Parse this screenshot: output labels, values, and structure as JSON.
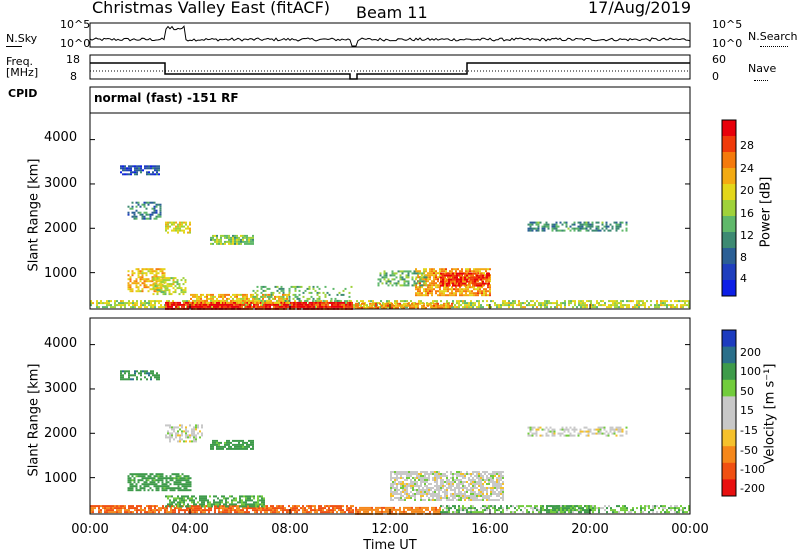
{
  "header": {
    "title": "Christmas Valley East (fitACF)",
    "beam": "Beam 11",
    "date": "17/Aug/2019"
  },
  "top_panels": {
    "nsky_label": "N.Sky",
    "nsky_ticks": [
      "10^5",
      "10^0"
    ],
    "nsearch_label": "N.Search",
    "nsearch_ticks": [
      "10^5",
      "10^0"
    ],
    "freq_label": "Freq.",
    "freq_unit": "[MHz]",
    "freq_ticks": [
      "18",
      "8"
    ],
    "nave_label": "Nave",
    "nave_ticks": [
      "60",
      "0"
    ],
    "cpid_label": "CPID",
    "cpid_value": "normal (fast) -151 RF"
  },
  "axes": {
    "ylabel": "Slant Range [km]",
    "xlabel": "Time UT",
    "yticks": [
      "4000",
      "3000",
      "2000",
      "1000"
    ],
    "xticks": [
      "00:00",
      "04:00",
      "08:00",
      "12:00",
      "16:00",
      "20:00",
      "00:00"
    ]
  },
  "colorbars": {
    "power": {
      "label": "Power [dB]",
      "ticks": [
        "28",
        "24",
        "20",
        "16",
        "12",
        "8",
        "4"
      ],
      "colors": [
        "#e8000b",
        "#f03a0a",
        "#f57a0c",
        "#f3aa12",
        "#e3d61a",
        "#9fd23a",
        "#5fb86a",
        "#3d8a72",
        "#2b5f95",
        "#1f3fbe",
        "#0d1fe6"
      ]
    },
    "velocity": {
      "label": "Velocity [m s⁻¹]",
      "ticks": [
        "200",
        "100",
        "50",
        "15",
        "-15",
        "-50",
        "-100",
        "-200"
      ],
      "colors": [
        "#1d3cbf",
        "#2a6f8a",
        "#3e9b4a",
        "#72cc3c",
        "#c8c8c8",
        "#c8c8c8",
        "#f5c12c",
        "#f5871a",
        "#f05012",
        "#e81010"
      ]
    }
  },
  "chart_data": [
    {
      "type": "heatmap",
      "ylabel": "Slant Range [km]",
      "xlabel": "Time UT",
      "xlim": [
        0,
        24
      ],
      "ylim": [
        180,
        4600
      ],
      "colorbar_label": "Power [dB]",
      "clim": [
        0,
        30
      ],
      "regions": [
        {
          "t": [
            0.0,
            24.0
          ],
          "r": [
            200,
            380
          ],
          "v": 16,
          "d": 0.6
        },
        {
          "t": [
            3.0,
            10.5
          ],
          "r": [
            200,
            340
          ],
          "v": 28,
          "d": 0.95
        },
        {
          "t": [
            4.0,
            8.0
          ],
          "r": [
            330,
            520
          ],
          "v": 20,
          "d": 0.7
        },
        {
          "t": [
            10.6,
            14.5
          ],
          "r": [
            200,
            320
          ],
          "v": 22,
          "d": 0.8
        },
        {
          "t": [
            13.0,
            16.0
          ],
          "r": [
            500,
            1100
          ],
          "v": 22,
          "d": 0.75
        },
        {
          "t": [
            14.0,
            16.0
          ],
          "r": [
            700,
            1000
          ],
          "v": 28,
          "d": 0.8
        },
        {
          "t": [
            11.5,
            13.5
          ],
          "r": [
            700,
            1050
          ],
          "v": 12,
          "d": 0.5
        },
        {
          "t": [
            1.5,
            3.0
          ],
          "r": [
            600,
            1100
          ],
          "v": 20,
          "d": 0.6
        },
        {
          "t": [
            2.5,
            3.8
          ],
          "r": [
            500,
            900
          ],
          "v": 16,
          "d": 0.6
        },
        {
          "t": [
            1.5,
            2.8
          ],
          "r": [
            2200,
            2600
          ],
          "v": 8,
          "d": 0.45
        },
        {
          "t": [
            1.2,
            2.8
          ],
          "r": [
            3200,
            3420
          ],
          "v": 4,
          "d": 0.7
        },
        {
          "t": [
            3.0,
            4.0
          ],
          "r": [
            1900,
            2150
          ],
          "v": 18,
          "d": 0.6
        },
        {
          "t": [
            4.8,
            6.5
          ],
          "r": [
            1650,
            1850
          ],
          "v": 14,
          "d": 0.8
        },
        {
          "t": [
            17.5,
            21.5
          ],
          "r": [
            1950,
            2150
          ],
          "v": 10,
          "d": 0.55
        },
        {
          "t": [
            6.5,
            10.5
          ],
          "r": [
            350,
            700
          ],
          "v": 12,
          "d": 0.3
        }
      ]
    },
    {
      "type": "heatmap",
      "ylabel": "Slant Range [km]",
      "xlabel": "Time UT",
      "xlim": [
        0,
        24
      ],
      "ylim": [
        180,
        4600
      ],
      "colorbar_label": "Velocity [m s⁻¹]",
      "clim": [
        -250,
        250
      ],
      "regions": [
        {
          "t": [
            0.0,
            10.5
          ],
          "r": [
            200,
            380
          ],
          "v": -80,
          "d": 0.8
        },
        {
          "t": [
            10.6,
            14.0
          ],
          "r": [
            200,
            340
          ],
          "v": -60,
          "d": 0.8
        },
        {
          "t": [
            14.0,
            24.0
          ],
          "r": [
            200,
            380
          ],
          "v": 25,
          "d": 0.6
        },
        {
          "t": [
            3.0,
            7.0
          ],
          "r": [
            350,
            600
          ],
          "v": 40,
          "d": 0.6
        },
        {
          "t": [
            12.0,
            16.5
          ],
          "r": [
            500,
            1150
          ],
          "v": 0,
          "d": 0.75
        },
        {
          "t": [
            1.5,
            4.0
          ],
          "r": [
            700,
            1100
          ],
          "v": 50,
          "d": 0.7
        },
        {
          "t": [
            3.0,
            4.5
          ],
          "r": [
            1800,
            2200
          ],
          "v": 0,
          "d": 0.5
        },
        {
          "t": [
            4.8,
            6.5
          ],
          "r": [
            1650,
            1850
          ],
          "v": 50,
          "d": 0.8
        },
        {
          "t": [
            1.2,
            2.8
          ],
          "r": [
            3200,
            3420
          ],
          "v": 60,
          "d": 0.6
        },
        {
          "t": [
            17.5,
            21.5
          ],
          "r": [
            1950,
            2150
          ],
          "v": 0,
          "d": 0.55
        },
        {
          "t": [
            18.0,
            20.0
          ],
          "r": [
            230,
            380
          ],
          "v": 40,
          "d": 0.7
        }
      ]
    }
  ]
}
